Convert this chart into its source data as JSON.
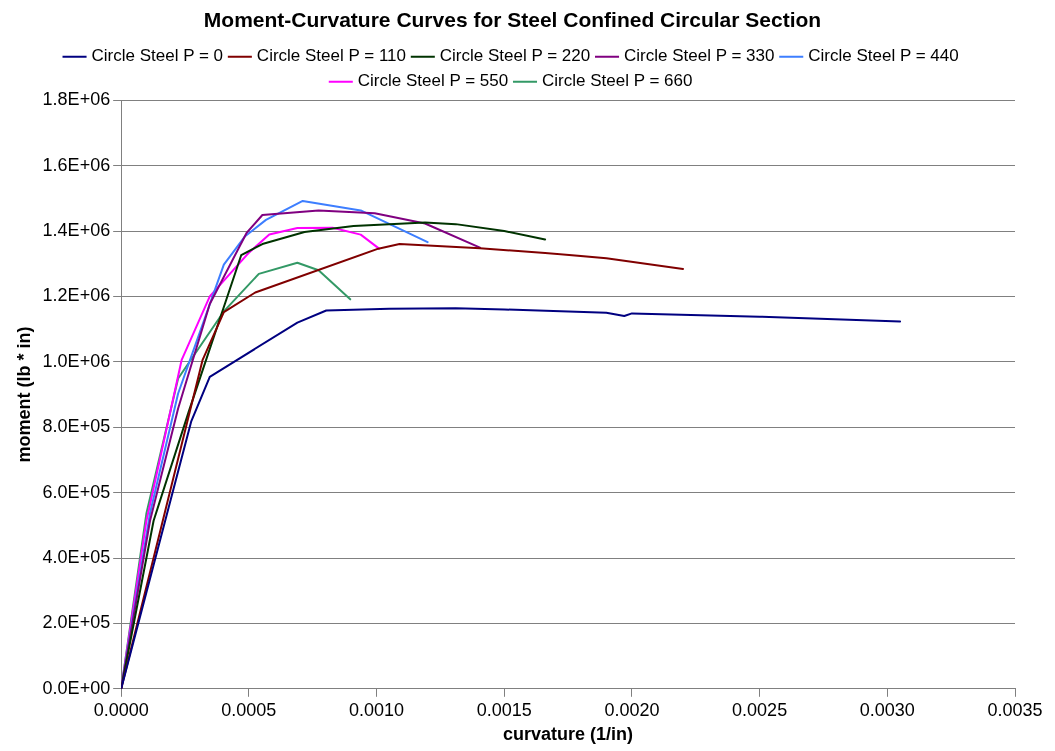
{
  "chart_data": {
    "type": "line",
    "title": "Moment-Curvature Curves for Steel Confined Circular Section",
    "xlabel": "curvature (1/in)",
    "ylabel": "moment (lb * in)",
    "xlim": [
      0,
      0.0035
    ],
    "xticks": [
      {
        "value": 0,
        "label": "0.0000"
      },
      {
        "value": 0.0005,
        "label": "0.0005"
      },
      {
        "value": 0.001,
        "label": "0.0010"
      },
      {
        "value": 0.0015,
        "label": "0.0015"
      },
      {
        "value": 0.002,
        "label": "0.0020"
      },
      {
        "value": 0.0025,
        "label": "0.0025"
      },
      {
        "value": 0.003,
        "label": "0.0030"
      },
      {
        "value": 0.0035,
        "label": "0.0035"
      }
    ],
    "ylim": [
      0,
      1800000
    ],
    "yticks": [
      {
        "value": 0,
        "label": "0.0E+00"
      },
      {
        "value": 200000,
        "label": "2.0E+05"
      },
      {
        "value": 400000,
        "label": "4.0E+05"
      },
      {
        "value": 600000,
        "label": "6.0E+05"
      },
      {
        "value": 800000,
        "label": "8.0E+05"
      },
      {
        "value": 1000000,
        "label": "1.0E+06"
      },
      {
        "value": 1200000,
        "label": "1.2E+06"
      },
      {
        "value": 1400000,
        "label": "1.4E+06"
      },
      {
        "value": 1600000,
        "label": "1.6E+06"
      },
      {
        "value": 1800000,
        "label": "1.8E+06"
      }
    ],
    "grid": "y",
    "legend": "top",
    "marker": "none",
    "line_style": "solid",
    "series": [
      {
        "name": "Circle Steel P = 0",
        "color": "#000080",
        "x": [
          0,
          0.000274,
          0.000347,
          0.00069,
          0.000803,
          0.00105,
          0.00131,
          0.0015,
          0.0019,
          0.00197,
          0.002,
          0.0025,
          0.00305
        ],
        "values": [
          0,
          817000,
          954000,
          1120000,
          1157000,
          1162000,
          1164000,
          1160000,
          1150000,
          1140000,
          1148000,
          1138000,
          1123000
        ]
      },
      {
        "name": "Circle Steel P = 110",
        "color": "#800000",
        "x": [
          0,
          0.000319,
          0.000402,
          0.000525,
          0.001007,
          0.00109,
          0.001405,
          0.00166,
          0.0019,
          0.0022
        ],
        "values": [
          0,
          1006000,
          1152000,
          1212000,
          1346000,
          1360000,
          1347000,
          1333000,
          1317000,
          1284000
        ]
      },
      {
        "name": "Circle Steel P = 220",
        "color": "#003300",
        "x": [
          0,
          0.000127,
          0.000264,
          0.00047,
          0.000553,
          0.000718,
          0.00091,
          0.00119,
          0.00131,
          0.0015,
          0.00166
        ],
        "values": [
          0,
          514000,
          846000,
          1326000,
          1360000,
          1397000,
          1415000,
          1426000,
          1421000,
          1400000,
          1374000
        ]
      },
      {
        "name": "Circle Steel P = 330",
        "color": "#800080",
        "x": [
          0,
          0.000113,
          0.000223,
          0.000347,
          0.000491,
          0.000553,
          0.000773,
          0.000993,
          0.00119,
          0.001405
        ],
        "values": [
          0,
          514000,
          857000,
          1177000,
          1394000,
          1449000,
          1463000,
          1454000,
          1423000,
          1349000
        ]
      },
      {
        "name": "Circle Steel P = 440",
        "color": "#3d7eff",
        "x": [
          0,
          0.000113,
          0.000223,
          0.000402,
          0.000484,
          0.000567,
          0.000711,
          0.000938,
          0.0012
        ],
        "values": [
          0,
          537000,
          903000,
          1297000,
          1383000,
          1434000,
          1492000,
          1463000,
          1366000
        ]
      },
      {
        "name": "Circle Steel P = 550",
        "color": "#ff00ff",
        "x": [
          0,
          9.9e-05,
          0.000237,
          0.000347,
          0.000498,
          0.00058,
          0.00069,
          0.000828,
          0.000938,
          0.00101
        ],
        "values": [
          0,
          514000,
          1006000,
          1200000,
          1332000,
          1389000,
          1409000,
          1410000,
          1389000,
          1346000
        ]
      },
      {
        "name": "Circle Steel P = 660",
        "color": "#339966",
        "x": [
          0,
          9.9e-05,
          0.000223,
          0.000402,
          0.000539,
          0.00069,
          0.000773,
          0.000897
        ],
        "values": [
          0,
          537000,
          949000,
          1154000,
          1269000,
          1303000,
          1280000,
          1191000
        ]
      }
    ]
  }
}
